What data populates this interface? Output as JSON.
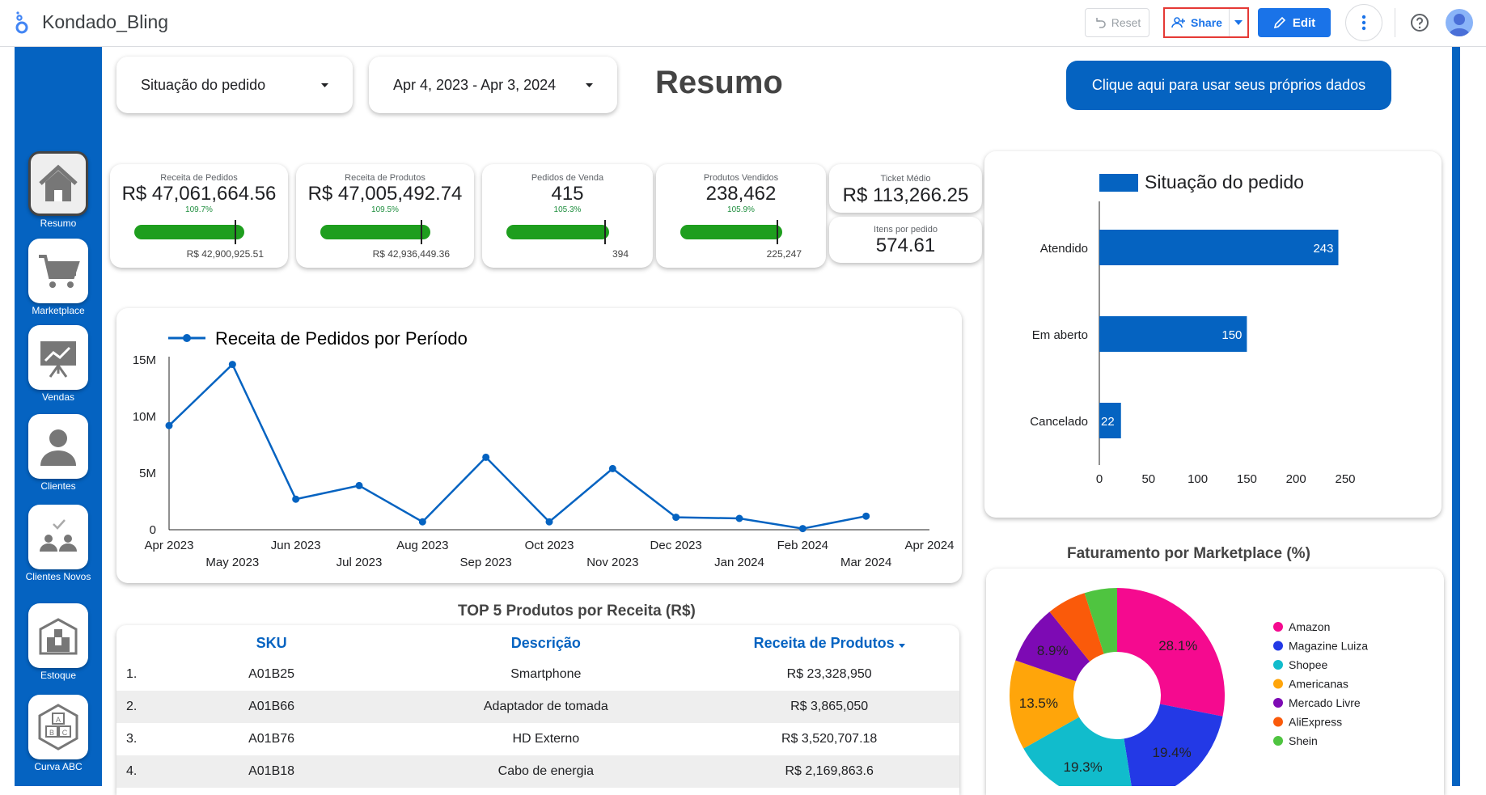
{
  "app": {
    "title": "Kondado_Bling"
  },
  "toolbar": {
    "reset_label": "Reset",
    "share_label": "Share",
    "edit_label": "Edit"
  },
  "nav": [
    {
      "label": "Resumo",
      "icon": "home-icon",
      "active": true
    },
    {
      "label": "Marketplace",
      "icon": "cart-icon"
    },
    {
      "label": "Vendas",
      "icon": "presentation-icon"
    },
    {
      "label": "Clientes",
      "icon": "person-icon"
    },
    {
      "label": "Clientes Novos",
      "icon": "new-clients-icon"
    },
    {
      "label": "Estoque",
      "icon": "warehouse-icon"
    },
    {
      "label": "Curva ABC",
      "icon": "abc-boxes-icon"
    }
  ],
  "filters": {
    "status_label": "Situação do pedido",
    "date_range": "Apr 4, 2023 - Apr 3, 2024"
  },
  "page_title": "Resumo",
  "cta_label": "Clique aqui para usar seus próprios dados",
  "kpis": [
    {
      "label": "Receita de Pedidos",
      "value": "R$ 47,061,664.56",
      "pct": "109.7%",
      "target": "R$ 42,900,925.51",
      "progress": 1.097
    },
    {
      "label": "Receita de Produtos",
      "value": "R$ 47,005,492.74",
      "pct": "109.5%",
      "target": "R$ 42,936,449.36",
      "progress": 1.095
    },
    {
      "label": "Pedidos de Venda",
      "value": "415",
      "pct": "105.3%",
      "target": "394",
      "progress": 1.053
    },
    {
      "label": "Produtos Vendidos",
      "value": "238,462",
      "pct": "105.9%",
      "target": "225,247",
      "progress": 1.059
    }
  ],
  "ticket": {
    "label": "Ticket Médio",
    "value": "R$ 113,266.25"
  },
  "itens": {
    "label": "Itens por pedido",
    "value": "574.61"
  },
  "chart_data": [
    {
      "type": "line",
      "title": "Receita de Pedidos por Período",
      "series": [
        {
          "name": "Receita de Pedidos por Período",
          "values": [
            9.2,
            14.6,
            2.7,
            3.9,
            0.7,
            6.4,
            0.7,
            5.4,
            1.1,
            1.0,
            0.1,
            1.2
          ]
        }
      ],
      "x": [
        "Apr 2023",
        "May 2023",
        "Jun 2023",
        "Jul 2023",
        "Aug 2023",
        "Sep 2023",
        "Oct 2023",
        "Nov 2023",
        "Dec 2023",
        "Jan 2024",
        "Feb 2024",
        "Mar 2024"
      ],
      "x_ticks": [
        "Apr 2023",
        "May 2023",
        "Jun 2023",
        "Jul 2023",
        "Aug 2023",
        "Sep 2023",
        "Oct 2023",
        "Nov 2023",
        "Dec 2023",
        "Jan 2024",
        "Feb 2024",
        "Mar 2024",
        "Apr 2024"
      ],
      "y_ticks": [
        "0",
        "5M",
        "10M",
        "15M"
      ],
      "ylim": [
        0,
        15
      ],
      "color": "#0563c1"
    },
    {
      "type": "bar",
      "title": "Situação do pedido",
      "categories": [
        "Atendido",
        "Em aberto",
        "Cancelado"
      ],
      "values": [
        243,
        150,
        22
      ],
      "x_ticks": [
        "0",
        "50",
        "100",
        "150",
        "200",
        "250"
      ],
      "xlim": [
        0,
        250
      ],
      "color": "#0563c1"
    },
    {
      "type": "pie",
      "title": "Faturamento por Marketplace (%)",
      "categories": [
        "Amazon",
        "Magazine Luiza",
        "Shopee",
        "Americanas",
        "Mercado Livre",
        "AliExpress",
        "Shein"
      ],
      "values": [
        28.1,
        19.4,
        19.3,
        13.5,
        8.9,
        5.9,
        4.9
      ],
      "labels": [
        "28.1%",
        "19.4%",
        "19.3%",
        "13.5%",
        "8.9%",
        "",
        ""
      ],
      "colors": [
        "#f50a8f",
        "#2339e6",
        "#11bccc",
        "#ffa50a",
        "#7d0ab4",
        "#fa5a0a",
        "#4fc440"
      ]
    }
  ],
  "top5": {
    "title": "TOP 5 Produtos por Receita (R$)",
    "headers": [
      "SKU",
      "Descrição",
      "Receita de Produtos"
    ],
    "rows": [
      {
        "n": "1.",
        "sku": "A01B25",
        "desc": "Smartphone",
        "rev": "R$ 23,328,950"
      },
      {
        "n": "2.",
        "sku": "A01B66",
        "desc": "Adaptador de tomada",
        "rev": "R$ 3,865,050"
      },
      {
        "n": "3.",
        "sku": "A01B76",
        "desc": "HD Externo",
        "rev": "R$ 3,520,707.18"
      },
      {
        "n": "4.",
        "sku": "A01B18",
        "desc": "Cabo de energia",
        "rev": "R$ 2,169,863.6"
      }
    ]
  }
}
